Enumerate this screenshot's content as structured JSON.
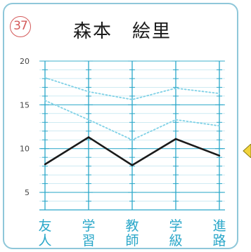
{
  "header": {
    "number": "37",
    "name": "森本　絵里"
  },
  "colors": {
    "grid": "#2aa7c9",
    "frame": "#8ec7d9",
    "number_badge": "#d45a5a",
    "main_line": "#1a1a1a",
    "dotted_lines": "#7fd1e6",
    "arrow": "#f2d43c"
  },
  "chart_data": {
    "type": "line",
    "categories": [
      "友人",
      "学習",
      "教師",
      "学級",
      "進路"
    ],
    "y_ticks": [
      5,
      10,
      15,
      20
    ],
    "ylim": [
      3,
      20
    ],
    "series": [
      {
        "style": "solid",
        "values": [
          8.2,
          11.3,
          8.1,
          11.1,
          9.2
        ]
      },
      {
        "style": "dotted",
        "values": [
          15.5,
          13.3,
          11.0,
          13.3,
          12.6
        ]
      },
      {
        "style": "dotted",
        "values": [
          18.1,
          16.5,
          15.6,
          16.9,
          16.3
        ]
      }
    ]
  }
}
